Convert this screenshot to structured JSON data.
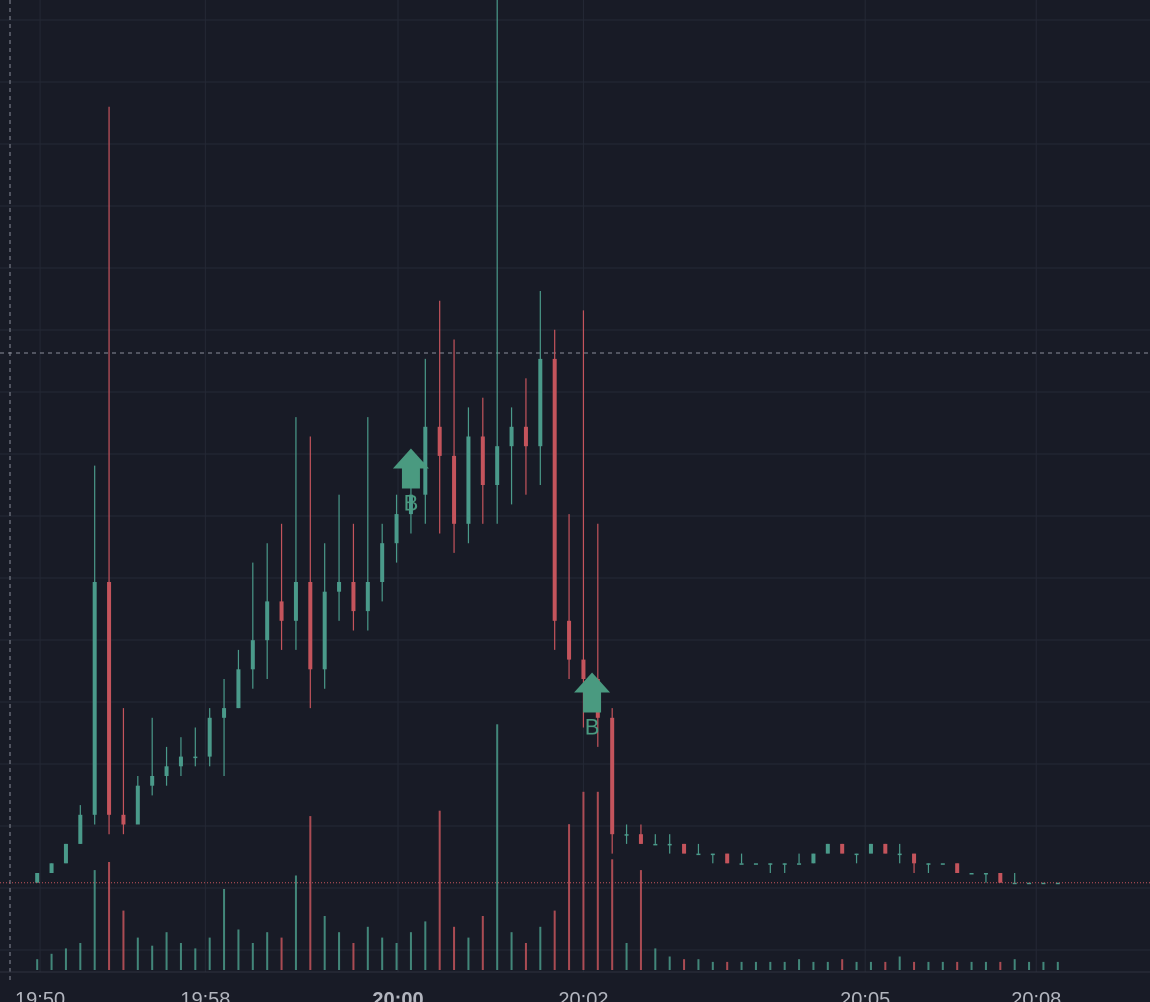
{
  "chart_data": {
    "type": "candlestick",
    "open": [
      9,
      10,
      11,
      13,
      16,
      40,
      16,
      15,
      19,
      20,
      21,
      22,
      22,
      26,
      27,
      31,
      34,
      38,
      36,
      40,
      31,
      39,
      40,
      37,
      40,
      44,
      47,
      49,
      56,
      53,
      46,
      55,
      50,
      54,
      56,
      54,
      63,
      36,
      32,
      30,
      26,
      14,
      14,
      13,
      13,
      13,
      12,
      12,
      12,
      11,
      11,
      11,
      11,
      11,
      11,
      12,
      13,
      12,
      12,
      13,
      12,
      12,
      11,
      11,
      11,
      10,
      10,
      10,
      9,
      9,
      9,
      9
    ],
    "high": [
      10,
      11,
      13,
      17,
      52,
      89,
      27,
      20,
      26,
      23,
      24,
      25,
      27,
      30,
      33,
      42,
      44,
      46,
      57,
      55,
      44,
      49,
      46,
      57,
      46,
      49,
      53,
      63,
      69,
      65,
      58,
      59,
      100,
      58,
      61,
      70,
      66,
      47,
      68,
      46,
      27,
      15,
      15,
      14,
      14,
      13,
      13,
      12,
      12,
      12,
      11,
      11,
      11,
      12,
      12,
      13,
      13,
      12,
      13,
      13,
      13,
      12,
      11,
      11,
      11,
      10,
      10,
      10,
      10,
      9,
      9,
      9
    ],
    "low": [
      9,
      10,
      11,
      13,
      15,
      14,
      14,
      15,
      18,
      19,
      20,
      21,
      21,
      20,
      27,
      29,
      30,
      33,
      33,
      27,
      29,
      36,
      35,
      35,
      38,
      42,
      45,
      46,
      45,
      43,
      44,
      46,
      46,
      48,
      49,
      50,
      33,
      30,
      25,
      23,
      12,
      13,
      13,
      13,
      12,
      12,
      12,
      11,
      11,
      11,
      11,
      10,
      10,
      11,
      11,
      12,
      12,
      11,
      12,
      12,
      11,
      10,
      10,
      11,
      10,
      10,
      9,
      9,
      9,
      9,
      9,
      9
    ],
    "close": [
      10,
      11,
      13,
      16,
      40,
      16,
      15,
      19,
      20,
      21,
      22,
      22,
      26,
      27,
      31,
      34,
      38,
      36,
      40,
      31,
      39,
      40,
      37,
      40,
      44,
      47,
      49,
      56,
      53,
      46,
      55,
      50,
      54,
      56,
      54,
      63,
      36,
      32,
      30,
      26,
      14,
      14,
      13,
      13,
      13,
      12,
      12,
      12,
      11,
      11,
      11,
      11,
      11,
      11,
      12,
      13,
      12,
      12,
      13,
      12,
      12,
      11,
      11,
      11,
      10,
      10,
      10,
      9,
      9,
      9,
      9,
      9
    ],
    "volume": [
      4,
      6,
      8,
      10,
      37,
      40,
      22,
      12,
      9,
      14,
      10,
      8,
      12,
      30,
      15,
      10,
      14,
      12,
      35,
      57,
      20,
      14,
      10,
      16,
      12,
      10,
      14,
      18,
      59,
      16,
      12,
      20,
      91,
      14,
      10,
      16,
      22,
      54,
      66,
      66,
      41,
      10,
      37,
      8,
      5,
      4,
      4,
      3,
      3,
      3,
      3,
      3,
      3,
      4,
      3,
      3,
      4,
      3,
      3,
      3,
      5,
      3,
      3,
      3,
      3,
      3,
      3,
      3,
      4,
      3,
      3,
      3
    ],
    "xlim": [
      0,
      72
    ],
    "ylim": [
      0,
      100
    ],
    "vlim": [
      0,
      100
    ],
    "xticks": [
      {
        "value": 0.2,
        "label": "19:50"
      },
      {
        "value": 11.7,
        "label": "19:58"
      },
      {
        "value": 25.1,
        "label": "20:00"
      },
      {
        "value": 38,
        "label": "20:02"
      },
      {
        "value": 57.6,
        "label": "20:05"
      },
      {
        "value": 69.5,
        "label": "20:08"
      }
    ],
    "markers": [
      {
        "index": 26,
        "value": 51.5,
        "label": "B"
      },
      {
        "index": 38.6,
        "value": 28.4,
        "label": "B"
      }
    ],
    "up_color": "#4a9a8a",
    "down_color": "#c4545c",
    "marker_color": "#4a9a80",
    "grid": true
  }
}
